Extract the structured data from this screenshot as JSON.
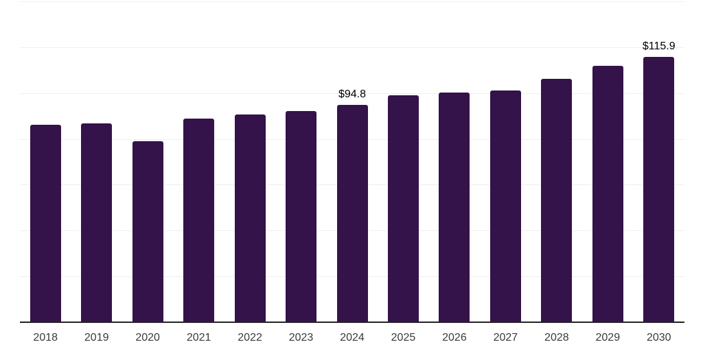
{
  "chart_data": {
    "type": "bar",
    "categories": [
      "2018",
      "2019",
      "2020",
      "2021",
      "2022",
      "2023",
      "2024",
      "2025",
      "2026",
      "2027",
      "2028",
      "2029",
      "2030"
    ],
    "values": [
      86.2,
      86.7,
      79.0,
      88.8,
      90.5,
      92.0,
      94.8,
      98.9,
      100.3,
      101.2,
      106.1,
      111.9,
      115.9
    ],
    "data_labels": [
      null,
      null,
      null,
      null,
      null,
      null,
      "$94.8",
      null,
      null,
      null,
      null,
      null,
      "$115.9"
    ],
    "title": "",
    "xlabel": "",
    "ylabel": "",
    "ylim": [
      0,
      140
    ],
    "grid_step": 20,
    "grid": true,
    "legend_position": "none",
    "y_axis_labels_visible": false,
    "colors": {
      "bar": "#34124A",
      "gridline": "#efefef",
      "axis": "#222222",
      "tick_label": "#3a3a3a",
      "data_label": "#000000",
      "background": "#ffffff"
    }
  }
}
